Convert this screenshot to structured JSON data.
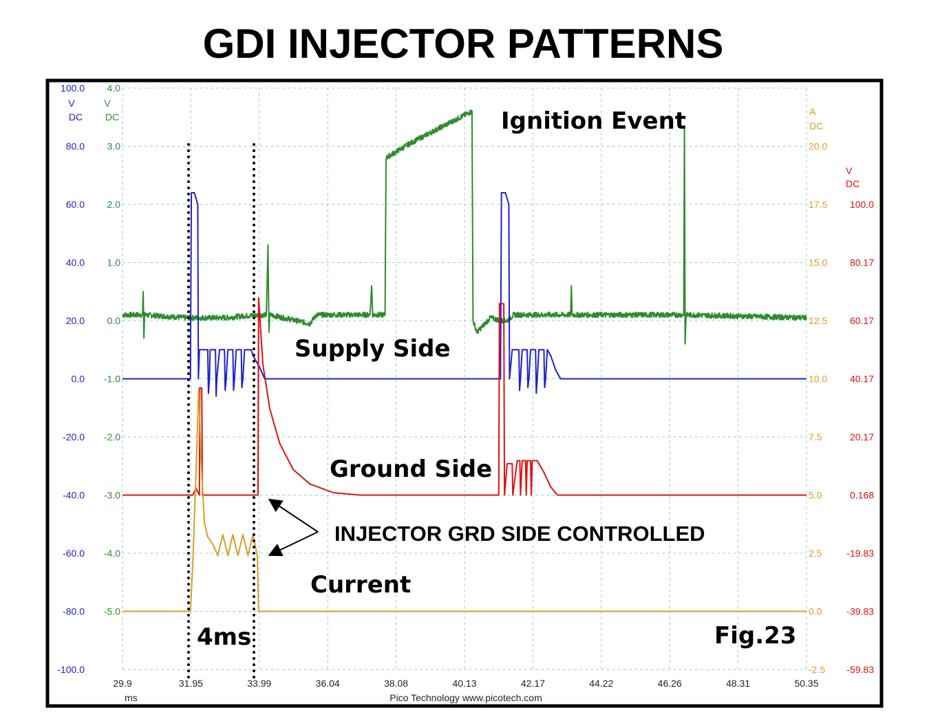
{
  "title": "GDI INJECTOR PATTERNS",
  "chart_data": {
    "type": "line",
    "title": "GDI INJECTOR PATTERNS",
    "xlabel": "ms",
    "xlim": [
      29.9,
      50.35
    ],
    "x_ticks": [
      "29.9",
      "31.95",
      "33.99",
      "36.04",
      "38.08",
      "40.13",
      "42.17",
      "44.22",
      "46.26",
      "48.31",
      "50.35"
    ],
    "grid": true,
    "footer": "Pico Technology  www.picotech.com",
    "axes": {
      "blue": {
        "unit": "V",
        "coupling": "DC",
        "color": "#2020c8",
        "ylim": [
          -100,
          100
        ],
        "ticks": [
          "100.0",
          "80.0",
          "60.0",
          "40.0",
          "20.0",
          "0.0",
          "-20.0",
          "-40.0",
          "-60.0",
          "-80.0",
          "-100.0"
        ]
      },
      "green": {
        "unit": "V",
        "coupling": "DC",
        "color": "#2e8b2e",
        "ylim": [
          -6.0,
          4.0
        ],
        "ticks": [
          "4.0",
          "3.0",
          "2.0",
          "1.0",
          "0.0",
          "-1.0",
          "-2.0",
          "-3.0",
          "-4.0",
          "-5.0"
        ]
      },
      "orange": {
        "unit": "A",
        "coupling": "DC",
        "color": "#d4a020",
        "ylim": [
          -2.5,
          22.5
        ],
        "ticks": [
          "20.0",
          "17.5",
          "15.0",
          "12.5",
          "10.0",
          "7.5",
          "5.0",
          "2.5",
          "0.0",
          "-2.5"
        ]
      },
      "red": {
        "unit": "V",
        "coupling": "DC",
        "color": "#e01010",
        "ylim": [
          -59.83,
          140.17
        ],
        "ticks": [
          "100.0",
          "80.17",
          "60.17",
          "40.17",
          "20.17",
          "0.168",
          "-19.83",
          "-39.83",
          "-59.83"
        ]
      }
    },
    "series": [
      {
        "axis": "green",
        "color": "#2e8b2e",
        "points": [
          [
            29.9,
            0.1
          ],
          [
            30.5,
            0.1
          ],
          [
            30.52,
            0.5
          ],
          [
            30.54,
            -0.3
          ],
          [
            30.56,
            0.1
          ],
          [
            31.8,
            0.05
          ],
          [
            32.5,
            0.05
          ],
          [
            33.0,
            0.05
          ],
          [
            33.5,
            0.08
          ],
          [
            34.2,
            0.1
          ],
          [
            34.25,
            1.3
          ],
          [
            34.28,
            -0.2
          ],
          [
            34.3,
            0.1
          ],
          [
            35.5,
            -0.05
          ],
          [
            35.7,
            0.1
          ],
          [
            37.3,
            0.1
          ],
          [
            37.35,
            0.6
          ],
          [
            37.38,
            0.1
          ],
          [
            37.75,
            0.1
          ],
          [
            37.78,
            2.8
          ],
          [
            38.5,
            3.05
          ],
          [
            39.5,
            3.35
          ],
          [
            40.35,
            3.6
          ],
          [
            40.38,
            0.0
          ],
          [
            40.5,
            -0.2
          ],
          [
            40.9,
            0.05
          ],
          [
            41.2,
            0.0
          ],
          [
            41.4,
            0.0
          ],
          [
            41.6,
            0.1
          ],
          [
            43.3,
            0.1
          ],
          [
            43.32,
            0.6
          ],
          [
            43.34,
            0.1
          ],
          [
            46.68,
            0.1
          ],
          [
            46.7,
            3.35
          ],
          [
            46.72,
            -0.4
          ],
          [
            46.75,
            0.1
          ],
          [
            50.35,
            0.05
          ]
        ]
      },
      {
        "axis": "blue",
        "color": "#2020c8",
        "points": [
          [
            29.9,
            0
          ],
          [
            31.93,
            0
          ],
          [
            31.96,
            64
          ],
          [
            32.05,
            64
          ],
          [
            32.15,
            60
          ],
          [
            32.17,
            0
          ],
          [
            32.2,
            10
          ],
          [
            32.45,
            10
          ],
          [
            32.47,
            -5
          ],
          [
            32.5,
            0
          ],
          [
            32.52,
            10
          ],
          [
            32.68,
            10
          ],
          [
            32.7,
            -6
          ],
          [
            32.72,
            0
          ],
          [
            32.8,
            10
          ],
          [
            32.95,
            10
          ],
          [
            32.97,
            -4
          ],
          [
            33.0,
            0
          ],
          [
            33.05,
            10
          ],
          [
            33.2,
            10
          ],
          [
            33.22,
            -4
          ],
          [
            33.25,
            0
          ],
          [
            33.3,
            10
          ],
          [
            33.45,
            10
          ],
          [
            33.47,
            -3
          ],
          [
            33.5,
            0
          ],
          [
            33.55,
            10
          ],
          [
            33.75,
            10
          ],
          [
            33.8,
            8
          ],
          [
            34.0,
            4
          ],
          [
            34.15,
            0
          ],
          [
            41.2,
            0
          ],
          [
            41.23,
            64
          ],
          [
            41.35,
            64
          ],
          [
            41.45,
            60
          ],
          [
            41.47,
            0
          ],
          [
            41.55,
            10
          ],
          [
            41.75,
            10
          ],
          [
            41.77,
            -4
          ],
          [
            41.8,
            0
          ],
          [
            41.85,
            10
          ],
          [
            42.0,
            10
          ],
          [
            42.02,
            -3
          ],
          [
            42.05,
            0
          ],
          [
            42.1,
            10
          ],
          [
            42.25,
            10
          ],
          [
            42.27,
            -5
          ],
          [
            42.3,
            0
          ],
          [
            42.35,
            10
          ],
          [
            42.5,
            10
          ],
          [
            42.52,
            -3
          ],
          [
            42.55,
            0
          ],
          [
            42.6,
            10
          ],
          [
            42.7,
            8
          ],
          [
            42.85,
            3
          ],
          [
            43.0,
            0
          ],
          [
            50.35,
            0
          ]
        ]
      },
      {
        "axis": "red",
        "color": "#e01010",
        "points": [
          [
            29.9,
            0.168
          ],
          [
            32.0,
            0.168
          ],
          [
            32.1,
            2.5
          ],
          [
            32.2,
            0.168
          ],
          [
            32.21,
            37
          ],
          [
            32.27,
            37
          ],
          [
            32.29,
            0.168
          ],
          [
            33.95,
            0.168
          ],
          [
            33.97,
            68
          ],
          [
            34.1,
            45
          ],
          [
            34.3,
            30
          ],
          [
            34.6,
            18
          ],
          [
            35.0,
            9
          ],
          [
            35.5,
            4
          ],
          [
            36.2,
            1
          ],
          [
            37.0,
            0.168
          ],
          [
            41.15,
            0.168
          ],
          [
            41.17,
            66
          ],
          [
            41.3,
            66
          ],
          [
            41.32,
            0.168
          ],
          [
            41.4,
            11
          ],
          [
            41.55,
            11
          ],
          [
            41.57,
            0.168
          ],
          [
            41.7,
            12
          ],
          [
            41.78,
            12
          ],
          [
            41.8,
            0.168
          ],
          [
            41.85,
            12
          ],
          [
            41.95,
            12
          ],
          [
            41.97,
            0.168
          ],
          [
            42.0,
            12
          ],
          [
            42.1,
            12
          ],
          [
            42.12,
            0.168
          ],
          [
            42.15,
            12
          ],
          [
            42.3,
            12
          ],
          [
            42.5,
            8
          ],
          [
            42.7,
            3
          ],
          [
            42.9,
            0.168
          ],
          [
            50.35,
            0.168
          ]
        ]
      },
      {
        "axis": "orange",
        "color": "#d4a020",
        "points": [
          [
            29.9,
            0
          ],
          [
            31.93,
            0
          ],
          [
            32.0,
            2
          ],
          [
            32.1,
            6
          ],
          [
            32.18,
            9.6
          ],
          [
            32.25,
            6.5
          ],
          [
            32.35,
            3.8
          ],
          [
            32.45,
            3.2
          ],
          [
            32.6,
            2.9
          ],
          [
            32.75,
            2.4
          ],
          [
            32.9,
            3.3
          ],
          [
            33.05,
            2.4
          ],
          [
            33.2,
            3.3
          ],
          [
            33.35,
            2.4
          ],
          [
            33.5,
            3.3
          ],
          [
            33.65,
            2.4
          ],
          [
            33.8,
            3.3
          ],
          [
            33.93,
            2.4
          ],
          [
            33.97,
            0
          ],
          [
            50.35,
            0
          ]
        ]
      }
    ],
    "annotations": [
      "Ignition Event",
      "Supply Side",
      "Ground Side",
      "INJECTOR GRD SIDE CONTROLLED",
      "Current",
      "4ms",
      "Fig.23"
    ]
  }
}
